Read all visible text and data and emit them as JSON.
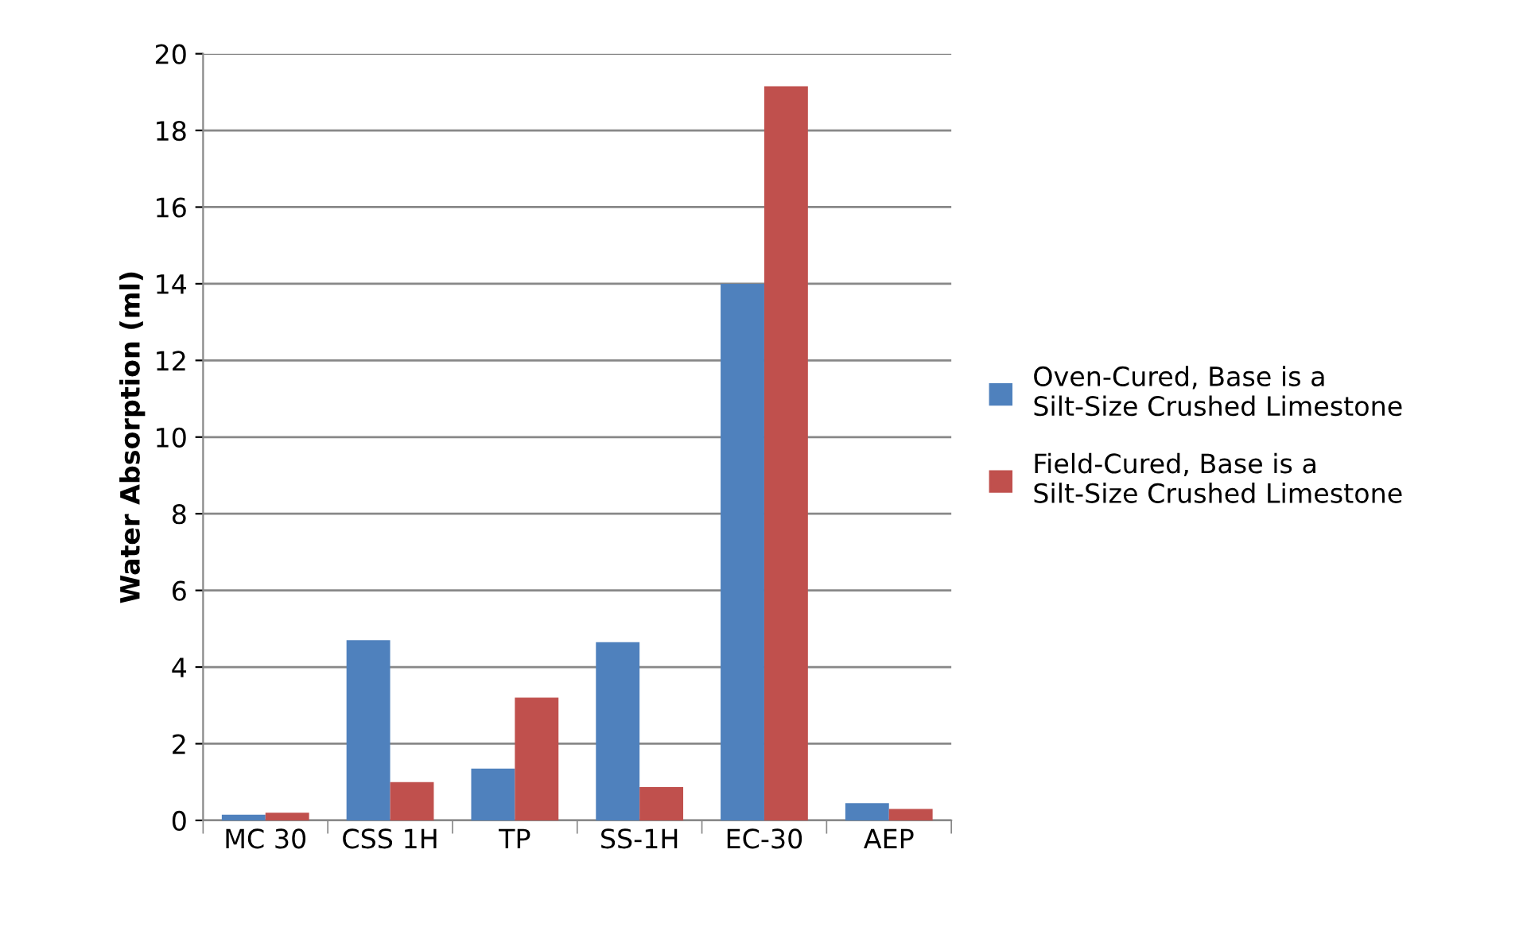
{
  "chart_data": {
    "type": "bar",
    "ylabel": "Water Absorption (ml)",
    "categories": [
      "MC 30",
      "CSS 1H",
      "TP",
      "SS-1H",
      "EC-30",
      "AEP"
    ],
    "series": [
      {
        "name": "Oven-Cured, Base is a Silt-Size Crushed Limestone",
        "color": "#4f81bd",
        "values": [
          0.15,
          4.7,
          1.35,
          4.65,
          14.0,
          0.45
        ]
      },
      {
        "name": "Field-Cured, Base is a Silt-Size Crushed Limestone",
        "color": "#c0504d",
        "values": [
          0.2,
          1.0,
          3.2,
          0.87,
          19.15,
          0.3
        ]
      }
    ],
    "ylim": [
      0,
      20
    ],
    "yticks": [
      0,
      2,
      4,
      6,
      8,
      10,
      12,
      14,
      16,
      18,
      20
    ],
    "grid": "y",
    "legend": "right"
  }
}
